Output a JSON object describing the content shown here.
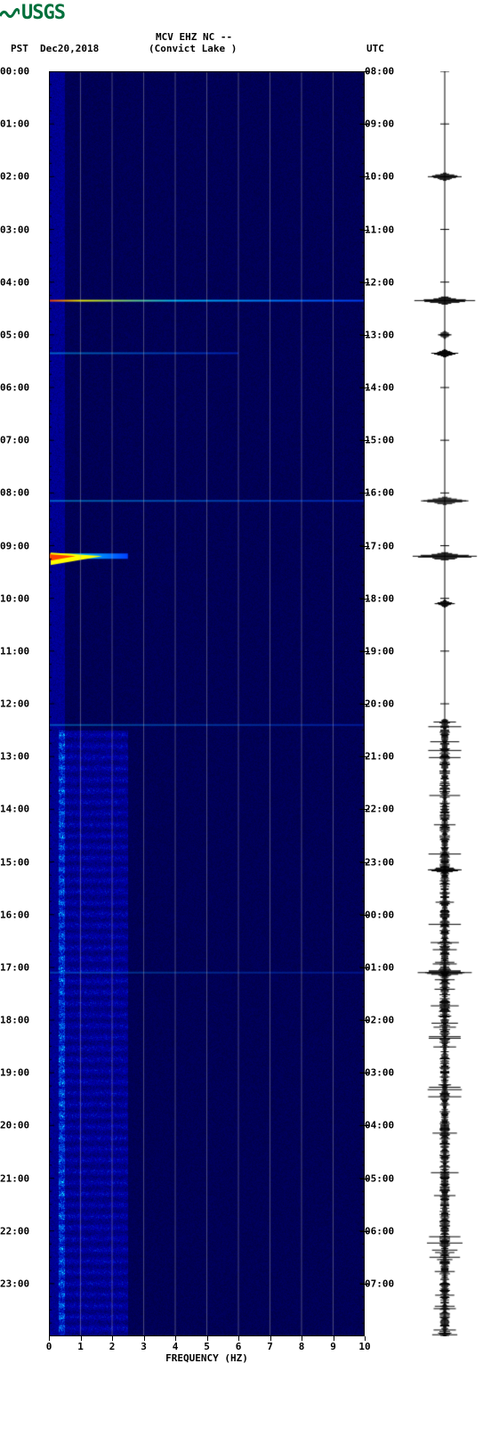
{
  "logo": {
    "text": "USGS"
  },
  "header": {
    "station": "MCV EHZ NC --",
    "location": "(Convict Lake )",
    "tz_left": "PST",
    "date": "Dec20,2018",
    "tz_right": "UTC"
  },
  "chart": {
    "type": "spectrogram",
    "background_color": "#000080",
    "grid_color": "#bcbcbc",
    "colormap": {
      "low": "#000060",
      "mid_low": "#0000a0",
      "mid": "#0040ff",
      "mid_high": "#00c0ff",
      "high": "#ffff00",
      "peak": "#ff4000"
    },
    "x_axis": {
      "label": "FREQUENCY (HZ)",
      "min": 0,
      "max": 10,
      "ticks": [
        0,
        1,
        2,
        3,
        4,
        5,
        6,
        7,
        8,
        9,
        10
      ]
    },
    "y_left": {
      "label": "PST",
      "ticks": [
        "00:00",
        "01:00",
        "02:00",
        "03:00",
        "04:00",
        "05:00",
        "06:00",
        "07:00",
        "08:00",
        "09:00",
        "10:00",
        "11:00",
        "12:00",
        "13:00",
        "14:00",
        "15:00",
        "16:00",
        "17:00",
        "18:00",
        "19:00",
        "20:00",
        "21:00",
        "22:00",
        "23:00"
      ]
    },
    "y_right": {
      "label": "UTC",
      "ticks": [
        "08:00",
        "09:00",
        "10:00",
        "11:00",
        "12:00",
        "13:00",
        "14:00",
        "15:00",
        "16:00",
        "17:00",
        "18:00",
        "19:00",
        "20:00",
        "21:00",
        "22:00",
        "23:00",
        "00:00",
        "01:00",
        "02:00",
        "03:00",
        "04:00",
        "05:00",
        "06:00",
        "07:00"
      ]
    },
    "events": [
      {
        "t": 4.35,
        "intensity": 0.9,
        "width": 1.0,
        "peak_color": true
      },
      {
        "t": 5.35,
        "intensity": 0.5,
        "width": 0.6
      },
      {
        "t": 8.15,
        "intensity": 0.5,
        "width": 1.0
      },
      {
        "t": 9.2,
        "intensity": 1.0,
        "width": 0.25,
        "peak_color": true,
        "burst": true
      },
      {
        "t": 12.4,
        "intensity": 0.4,
        "width": 1.0
      },
      {
        "t": 17.1,
        "intensity": 0.3,
        "width": 1.0
      }
    ],
    "noise_bands": [
      {
        "t_start": 12.5,
        "t_end": 24.0,
        "freq_start": 0.3,
        "freq_end": 2.5
      }
    ]
  },
  "seismogram": {
    "baseline_color": "#000000",
    "events": [
      {
        "t": 2.0,
        "amp": 0.5
      },
      {
        "t": 4.35,
        "amp": 0.9
      },
      {
        "t": 5.0,
        "amp": 0.2
      },
      {
        "t": 5.35,
        "amp": 0.4
      },
      {
        "t": 8.15,
        "amp": 0.7
      },
      {
        "t": 9.2,
        "amp": 0.95
      },
      {
        "t": 10.1,
        "amp": 0.3
      },
      {
        "t": 15.15,
        "amp": 0.5
      },
      {
        "t": 17.1,
        "amp": 0.8
      }
    ],
    "dense_start": 12.3,
    "dense_end": 24.0
  },
  "footer": ""
}
